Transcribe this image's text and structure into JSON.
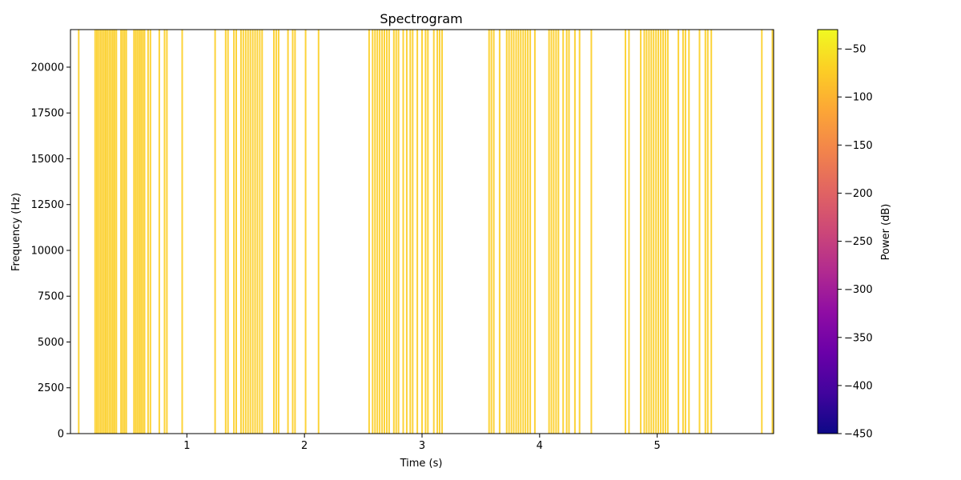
{
  "chart_data": {
    "type": "heatmap",
    "title": "Spectrogram",
    "xlabel": "Time (s)",
    "ylabel": "Frequency (Hz)",
    "xlim": [
      0.01,
      5.99
    ],
    "ylim": [
      0,
      22050
    ],
    "x_ticks": [
      1,
      2,
      3,
      4,
      5
    ],
    "y_ticks": [
      0,
      2500,
      5000,
      7500,
      10000,
      12500,
      15000,
      17500,
      20000
    ],
    "colorbar": {
      "label": "Power (dB)",
      "colormap": "plasma",
      "range": [
        -450,
        -30
      ],
      "ticks": [
        -450,
        -400,
        -350,
        -300,
        -250,
        -200,
        -150,
        -100,
        -50
      ],
      "tick_labels": [
        "−450",
        "−400",
        "−350",
        "−300",
        "−250",
        "−200",
        "−150",
        "−100",
        "−50"
      ]
    },
    "active_frames_s": [
      0.08,
      0.22,
      0.235,
      0.25,
      0.265,
      0.28,
      0.295,
      0.31,
      0.325,
      0.34,
      0.355,
      0.37,
      0.385,
      0.4,
      0.44,
      0.455,
      0.47,
      0.485,
      0.55,
      0.565,
      0.58,
      0.595,
      0.61,
      0.625,
      0.64,
      0.67,
      0.69,
      0.765,
      0.81,
      0.83,
      0.96,
      1.24,
      1.33,
      1.35,
      1.4,
      1.42,
      1.46,
      1.48,
      1.5,
      1.52,
      1.54,
      1.56,
      1.58,
      1.6,
      1.62,
      1.64,
      1.74,
      1.76,
      1.78,
      1.86,
      1.9,
      1.92,
      2.01,
      2.12,
      2.55,
      2.58,
      2.6,
      2.62,
      2.64,
      2.66,
      2.68,
      2.7,
      2.72,
      2.76,
      2.78,
      2.8,
      2.84,
      2.87,
      2.9,
      2.92,
      2.96,
      3.0,
      3.03,
      3.05,
      3.1,
      3.13,
      3.15,
      3.17,
      3.57,
      3.59,
      3.61,
      3.66,
      3.72,
      3.74,
      3.76,
      3.78,
      3.8,
      3.82,
      3.84,
      3.86,
      3.88,
      3.9,
      3.92,
      3.96,
      4.08,
      4.1,
      4.12,
      4.14,
      4.16,
      4.2,
      4.23,
      4.25,
      4.3,
      4.34,
      4.44,
      4.73,
      4.76,
      4.86,
      4.89,
      4.91,
      4.93,
      4.95,
      4.97,
      4.99,
      5.01,
      5.03,
      5.05,
      5.07,
      5.09,
      5.18,
      5.22,
      5.24,
      5.27,
      5.36,
      5.41,
      5.43,
      5.46,
      5.89,
      5.98
    ],
    "frame_power_db": -75,
    "silent_power_db": -450
  }
}
